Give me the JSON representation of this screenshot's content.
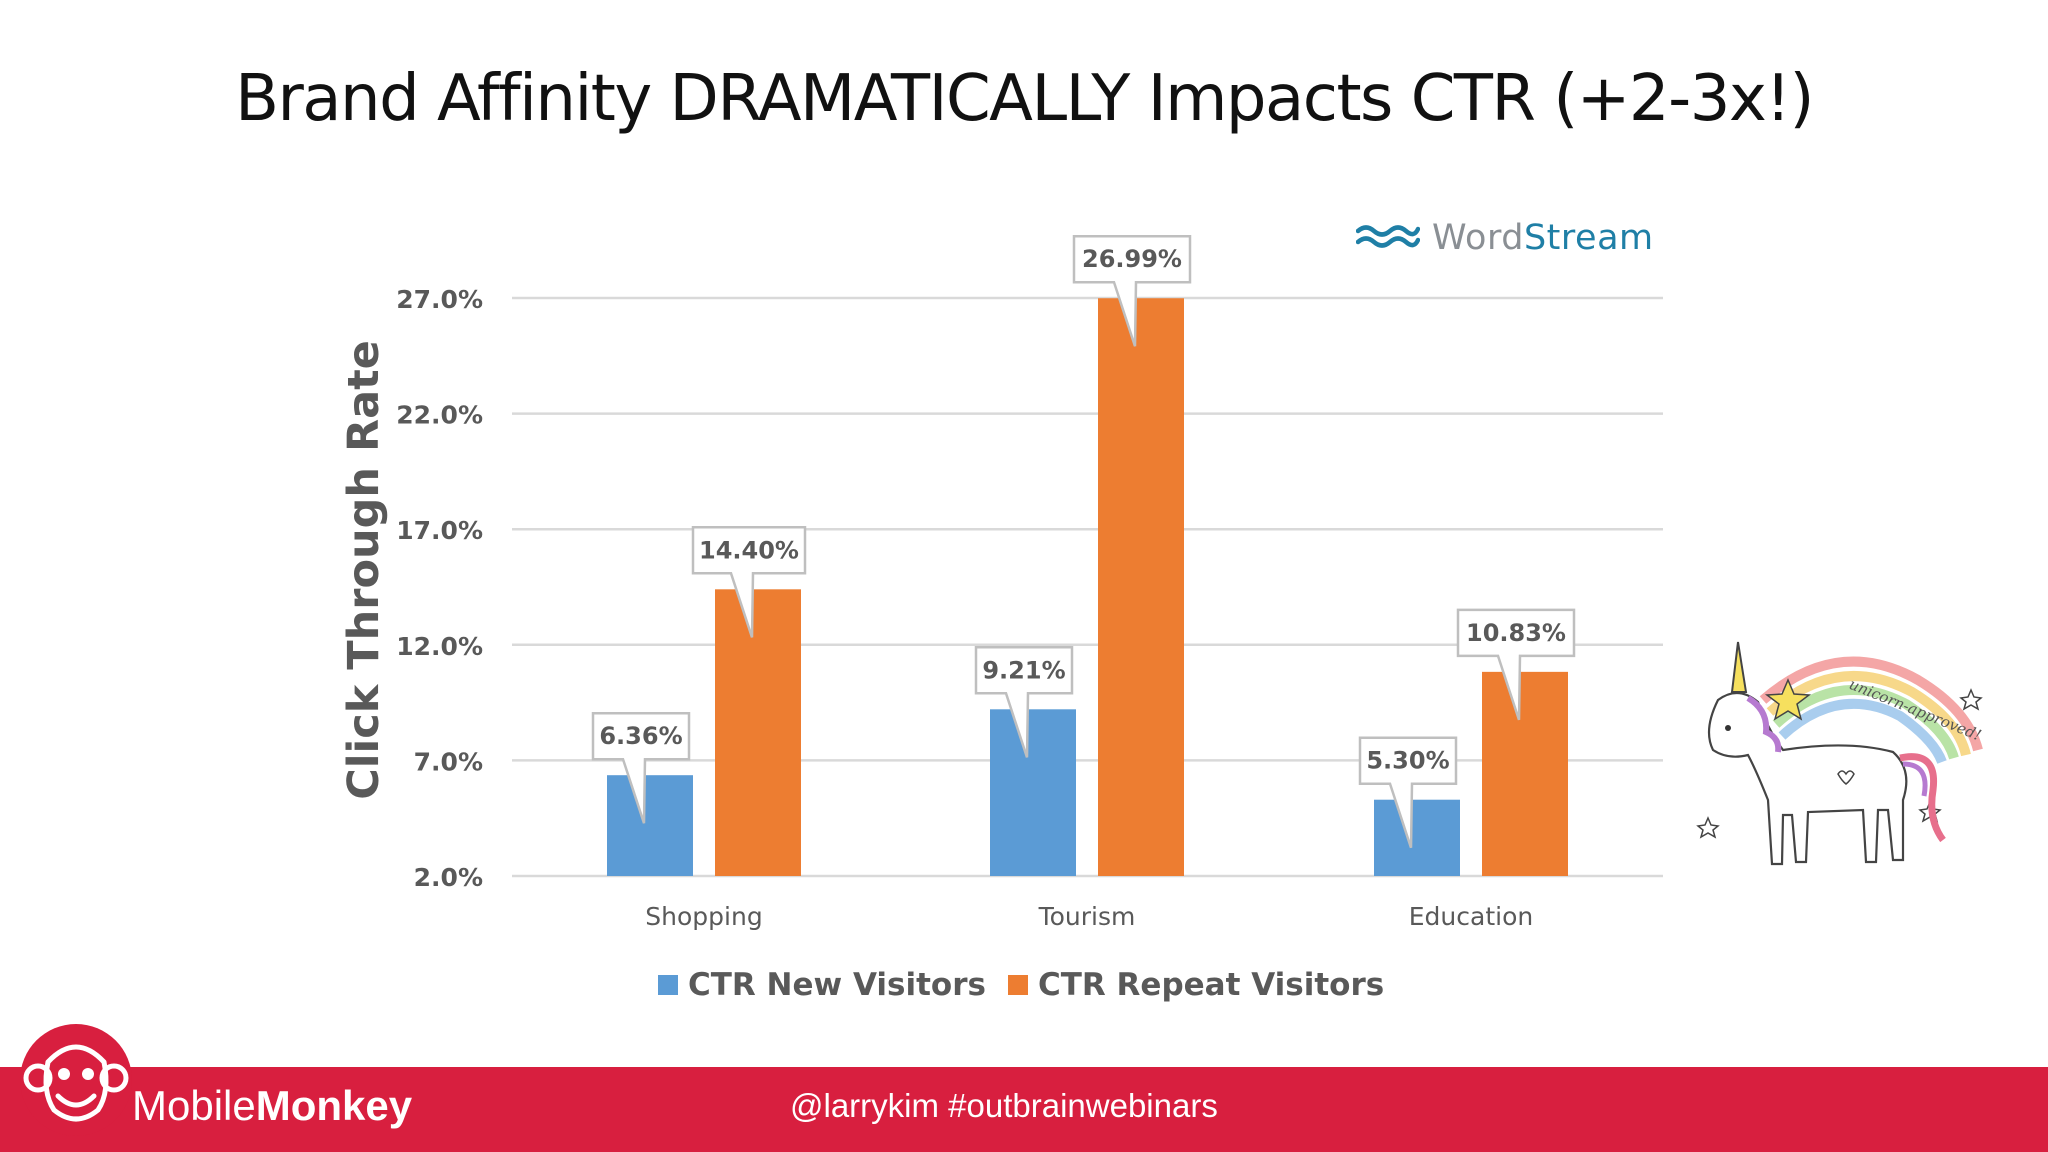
{
  "slide": {
    "title": "Brand Affinity DRAMATICALLY Impacts CTR (+2-3x!)"
  },
  "logo": {
    "word": "Word",
    "stream": "Stream"
  },
  "unicorn_caption": "unicorn-approved!",
  "footer": {
    "brand_regular": "Mobile",
    "brand_bold": "Monkey",
    "handle": "@larrykim  #outbrainwebinars"
  },
  "colors": {
    "new_visitors": "#5b9bd5",
    "repeat_visitors": "#ed7d31",
    "footer": "#d81f3f",
    "wordstream": "#1f7fa6"
  },
  "chart_data": {
    "type": "bar",
    "title": "",
    "xlabel": "",
    "ylabel": "Click Through Rate",
    "categories": [
      "Shopping",
      "Tourism",
      "Education"
    ],
    "series": [
      {
        "name": "CTR New Visitors",
        "values": [
          6.36,
          9.21,
          5.3
        ],
        "labels": [
          "6.36%",
          "9.21%",
          "5.30%"
        ],
        "color": "#5b9bd5"
      },
      {
        "name": "CTR Repeat Visitors",
        "values": [
          14.4,
          26.99,
          10.83
        ],
        "labels": [
          "14.40%",
          "26.99%",
          "10.83%"
        ],
        "color": "#ed7d31"
      }
    ],
    "ylim": [
      2.0,
      27.0
    ],
    "yticks": [
      2.0,
      7.0,
      12.0,
      17.0,
      22.0,
      27.0
    ],
    "ytick_labels": [
      "2.0%",
      "7.0%",
      "12.0%",
      "17.0%",
      "22.0%",
      "27.0%"
    ],
    "grid": true,
    "legend_position": "bottom"
  }
}
